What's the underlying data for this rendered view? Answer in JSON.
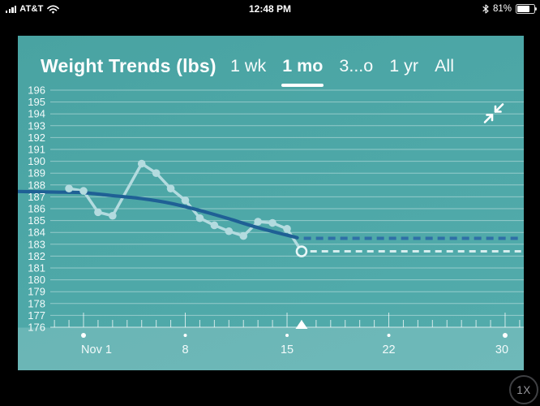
{
  "status_bar": {
    "carrier": "AT&T",
    "time": "12:48 PM",
    "battery_percent": "81%",
    "battery_level": 0.81
  },
  "header": {
    "title": "Weight Trends (lbs)",
    "tabs": [
      {
        "label": "1 wk",
        "active": false
      },
      {
        "label": "1 mo",
        "active": true
      },
      {
        "label": "3...o",
        "active": false
      },
      {
        "label": "1 yr",
        "active": false
      },
      {
        "label": "All",
        "active": false
      }
    ]
  },
  "zoom_button": {
    "label": "1X"
  },
  "colors": {
    "panel_teal": "#4ea8a8",
    "grid": "rgba(255,255,255,0.40)",
    "axis_strong": "rgba(255,255,255,0.75)",
    "axis_strip": "rgba(255,255,255,0.16)",
    "daily_series": "#b3dbdf",
    "daily_dashed": "#d6edee",
    "trend_line": "#1f6095",
    "trend_dashed": "#2f6fa6",
    "label_text": "#f2fafa",
    "marker_white": "#ffffff"
  },
  "chart_data": {
    "type": "line",
    "title": "Weight Trends (lbs)",
    "unit": "lbs",
    "y_axis": {
      "min": 176,
      "max": 196,
      "step": 1,
      "grid": true
    },
    "x_axis": {
      "month_shown": "Nov",
      "minor_tick_day_start": -1,
      "minor_tick_day_end": 31,
      "major_ticks": [
        {
          "day": 1,
          "label": "Nov 1",
          "label_dx": 16,
          "dot_r": 3
        },
        {
          "day": 8,
          "label": "8",
          "label_dx": 0,
          "dot_r": 2
        },
        {
          "day": 15,
          "label": "15",
          "label_dx": 0,
          "dot_r": 2
        },
        {
          "day": 22,
          "label": "22",
          "label_dx": 0,
          "dot_r": 2
        },
        {
          "day": 30,
          "label": "30",
          "label_dx": -4,
          "dot_r": 3
        }
      ],
      "today_marker_day": 16
    },
    "series": [
      {
        "name": "daily weight readings",
        "style": "light-line-with-dots",
        "last_point_open": true,
        "points": [
          [
            0,
            187.7
          ],
          [
            1,
            187.5
          ],
          [
            2,
            185.7
          ],
          [
            3,
            185.4
          ],
          [
            5,
            189.8
          ],
          [
            6,
            189.0
          ],
          [
            7,
            187.7
          ],
          [
            8,
            186.7
          ],
          [
            9,
            185.2
          ],
          [
            10,
            184.6
          ],
          [
            11,
            184.1
          ],
          [
            12,
            183.7
          ],
          [
            13,
            184.9
          ],
          [
            14,
            184.8
          ],
          [
            15,
            184.3
          ],
          [
            16,
            182.4
          ]
        ]
      },
      {
        "name": "weight trend",
        "style": "dark-smooth-curve",
        "points": [
          [
            -3.5,
            187.45
          ],
          [
            -1,
            187.4
          ],
          [
            1,
            187.35
          ],
          [
            3,
            187.1
          ],
          [
            5,
            186.85
          ],
          [
            7,
            186.45
          ],
          [
            9,
            185.85
          ],
          [
            11,
            185.15
          ],
          [
            13,
            184.4
          ],
          [
            15.7,
            183.55
          ]
        ]
      },
      {
        "name": "trend projection",
        "style": "dark-dashed",
        "value": 183.5,
        "from_day": 16.15,
        "to_day": 31.1
      },
      {
        "name": "latest projection",
        "style": "light-dashed",
        "value": 182.4,
        "from_day": 16.6,
        "to_day": 31.1
      }
    ]
  }
}
